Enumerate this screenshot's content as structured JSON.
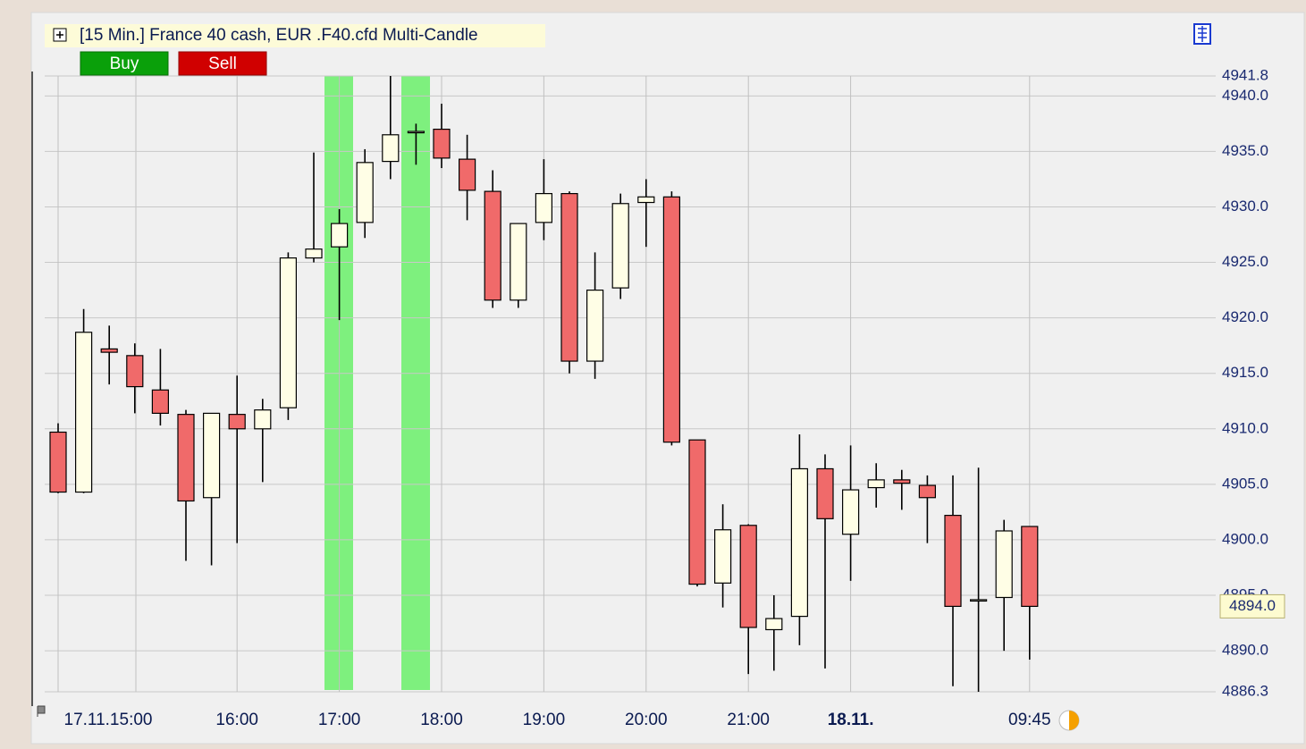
{
  "toolbar": {
    "buttons": [
      "Buy",
      "Sell"
    ]
  },
  "chart_data": {
    "type": "candlestick",
    "title": "[15 Min.] France 40 cash, EUR   .F40.cfd Multi-Candle",
    "categories": [
      "17.11.15:00",
      null,
      null,
      null,
      null,
      null,
      null,
      "16:00",
      null,
      null,
      null,
      "17:00",
      null,
      null,
      null,
      "18:00",
      null,
      null,
      null,
      "19:00",
      null,
      null,
      null,
      "20:00",
      null,
      null,
      null,
      "21:00",
      null,
      null,
      null,
      "18.11.",
      null,
      null,
      null,
      null,
      null,
      null,
      "09:45"
    ],
    "open": [
      4909.7,
      4904.3,
      4917.2,
      4916.6,
      4913.5,
      4911.3,
      4903.8,
      4911.3,
      4910.0,
      4911.9,
      4925.4,
      4926.4,
      4928.6,
      4934.1,
      4936.7,
      4937.0,
      4934.3,
      4931.4,
      4921.6,
      4928.6,
      4931.2,
      4916.1,
      4922.7,
      4930.4,
      4930.9,
      4909.0,
      4896.1,
      4901.3,
      4891.9,
      4893.1,
      4906.4,
      4900.5,
      4904.7,
      4905.4,
      4904.9,
      4902.2,
      4894.6,
      4894.8,
      4901.2
    ],
    "high": [
      4910.5,
      4920.8,
      4919.3,
      4917.7,
      4917.2,
      4911.7,
      4911.4,
      4914.8,
      4912.7,
      4925.9,
      4934.9,
      4929.8,
      4935.2,
      4941.8,
      4937.5,
      4939.3,
      4936.5,
      4933.3,
      4928.5,
      4934.3,
      4931.4,
      4925.9,
      4931.2,
      4932.5,
      4931.4,
      4909.0,
      4903.2,
      4901.4,
      4895.0,
      4909.5,
      4907.7,
      4908.5,
      4906.9,
      4906.3,
      4905.8,
      4905.8,
      4906.5,
      4901.8,
      4901.2
    ],
    "low": [
      4904.2,
      4904.2,
      4914.0,
      4911.4,
      4910.3,
      4898.1,
      4897.7,
      4899.7,
      4905.2,
      4910.8,
      4925.0,
      4919.8,
      4927.2,
      4932.5,
      4933.8,
      4933.5,
      4928.8,
      4920.9,
      4920.9,
      4927.0,
      4915.0,
      4914.5,
      4921.7,
      4926.4,
      4908.5,
      4895.8,
      4893.9,
      4887.9,
      4888.2,
      4890.5,
      4888.4,
      4896.3,
      4902.9,
      4902.7,
      4899.7,
      4886.8,
      4886.3,
      4890.0,
      4889.2
    ],
    "close": [
      4904.3,
      4918.7,
      4916.9,
      4913.8,
      4911.4,
      4903.5,
      4911.4,
      4910.0,
      4911.7,
      4925.4,
      4926.2,
      4928.5,
      4934.0,
      4936.5,
      4936.8,
      4934.4,
      4931.5,
      4921.6,
      4928.5,
      4931.2,
      4916.1,
      4922.5,
      4930.3,
      4930.9,
      4908.8,
      4896.0,
      4900.9,
      4892.1,
      4892.9,
      4906.4,
      4901.9,
      4904.5,
      4905.4,
      4905.1,
      4903.8,
      4894.0,
      4894.6,
      4900.8,
      4894.0
    ],
    "up_color": "#fffee6",
    "down_color": "#f06a6a",
    "ylim": [
      4886.3,
      4941.8
    ],
    "yticks": [
      {
        "value": 4941.8,
        "label": "4941.8"
      },
      {
        "value": 4940.0,
        "label": "4940.0"
      },
      {
        "value": 4935.0,
        "label": "4935.0"
      },
      {
        "value": 4930.0,
        "label": "4930.0"
      },
      {
        "value": 4925.0,
        "label": "4925.0"
      },
      {
        "value": 4920.0,
        "label": "4920.0"
      },
      {
        "value": 4915.0,
        "label": "4915.0"
      },
      {
        "value": 4910.0,
        "label": "4910.0"
      },
      {
        "value": 4905.0,
        "label": "4905.0"
      },
      {
        "value": 4900.0,
        "label": "4900.0"
      },
      {
        "value": 4895.0,
        "label": "4895.0"
      },
      {
        "value": 4890.0,
        "label": "4890.0"
      },
      {
        "value": 4886.3,
        "label": "4886.3"
      }
    ],
    "last_price": {
      "value": 4894.0,
      "label": "4894.0"
    },
    "grid": true
  }
}
